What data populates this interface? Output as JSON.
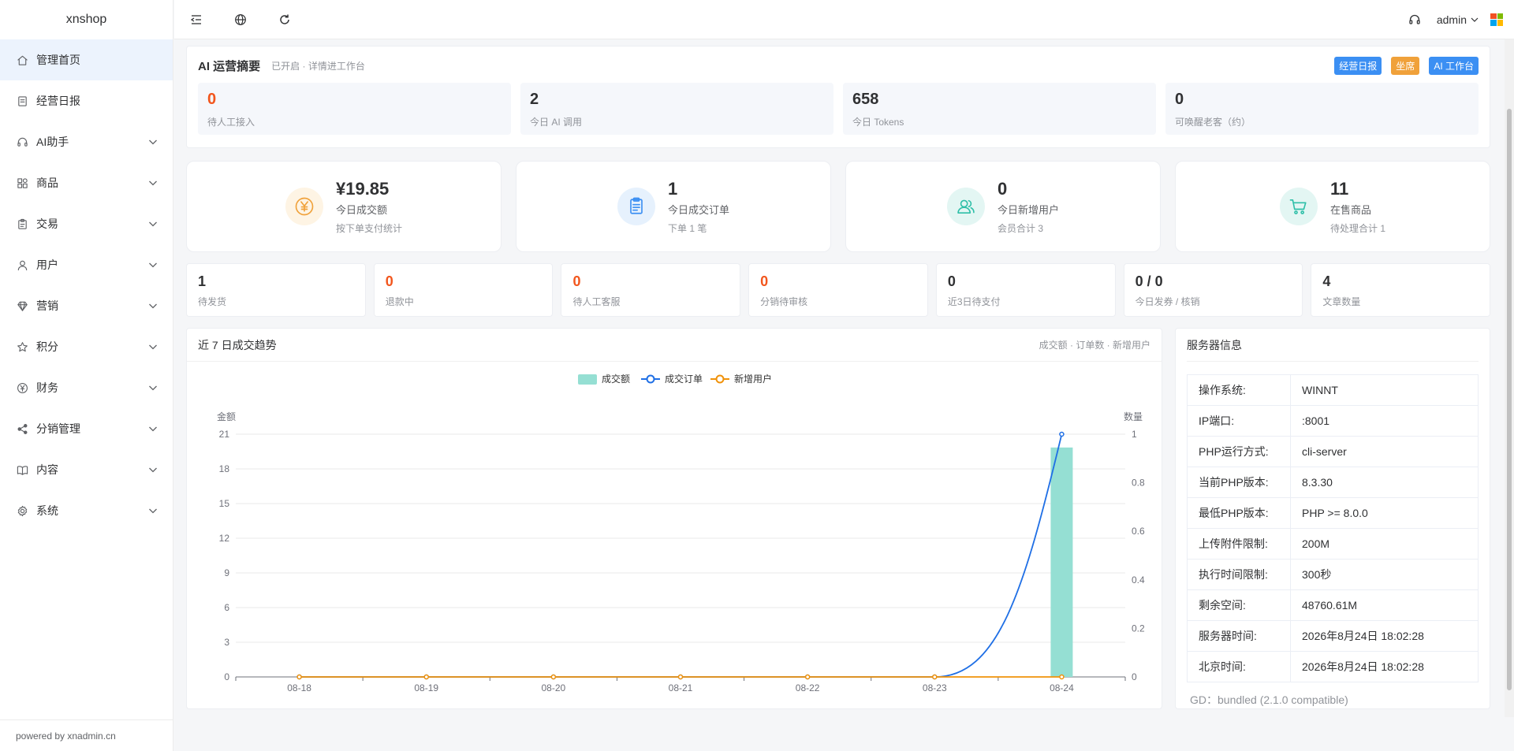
{
  "app": {
    "title": "xnshop",
    "footer": "powered by xnadmin.cn"
  },
  "sidebar": {
    "items": [
      {
        "label": "管理首页",
        "icon": "home-icon",
        "active": true,
        "expandable": false
      },
      {
        "label": "经营日报",
        "icon": "document-icon",
        "active": false,
        "expandable": false
      },
      {
        "label": "AI助手",
        "icon": "headset-icon",
        "active": false,
        "expandable": true
      },
      {
        "label": "商品",
        "icon": "goods-icon",
        "active": false,
        "expandable": true
      },
      {
        "label": "交易",
        "icon": "clipboard-icon",
        "active": false,
        "expandable": true
      },
      {
        "label": "用户",
        "icon": "user-icon",
        "active": false,
        "expandable": true
      },
      {
        "label": "营销",
        "icon": "diamond-icon",
        "active": false,
        "expandable": true
      },
      {
        "label": "积分",
        "icon": "star-icon",
        "active": false,
        "expandable": true
      },
      {
        "label": "财务",
        "icon": "yen-icon",
        "active": false,
        "expandable": true
      },
      {
        "label": "分销管理",
        "icon": "share-icon",
        "active": false,
        "expandable": true
      },
      {
        "label": "内容",
        "icon": "book-icon",
        "active": false,
        "expandable": true
      },
      {
        "label": "系统",
        "icon": "gear-icon",
        "active": false,
        "expandable": true
      }
    ]
  },
  "header": {
    "user": "admin"
  },
  "ai_summary": {
    "title": "AI 运营摘要",
    "subtitle": "已开启 · 详情进工作台",
    "actions": [
      {
        "label": "经营日报",
        "color": "#3b8ff3"
      },
      {
        "label": "坐席",
        "color": "#f0a13a"
      },
      {
        "label": "AI 工作台",
        "color": "#3b8ff3"
      }
    ],
    "stats": [
      {
        "value": "0",
        "label": "待人工接入",
        "red": true
      },
      {
        "value": "2",
        "label": "今日 AI 调用",
        "red": false
      },
      {
        "value": "658",
        "label": "今日 Tokens",
        "red": false
      },
      {
        "value": "0",
        "label": "可唤醒老客（约）",
        "red": false
      }
    ]
  },
  "big_stats": [
    {
      "value": "¥19.85",
      "label": "今日成交额",
      "sub": "按下单支付统计",
      "icon": "yen-circle-icon",
      "bg": "#fef4e4",
      "fg": "#f0a13a"
    },
    {
      "value": "1",
      "label": "今日成交订单",
      "sub": "下单 1 笔",
      "icon": "order-icon",
      "bg": "#e6f1fd",
      "fg": "#3b8ff3"
    },
    {
      "value": "0",
      "label": "今日新增用户",
      "sub": "会员合计 3",
      "icon": "users-icon",
      "bg": "#e3f6f3",
      "fg": "#2ebfa8"
    },
    {
      "value": "11",
      "label": "在售商品",
      "sub": "待处理合计 1",
      "icon": "cart-icon",
      "bg": "#e3f6f3",
      "fg": "#2ebfa8"
    }
  ],
  "small_stats": [
    {
      "value": "1",
      "label": "待发货",
      "red": false
    },
    {
      "value": "0",
      "label": "退款中",
      "red": true
    },
    {
      "value": "0",
      "label": "待人工客服",
      "red": true
    },
    {
      "value": "0",
      "label": "分销待审核",
      "red": true
    },
    {
      "value": "0",
      "label": "近3日待支付",
      "red": false
    },
    {
      "value": "0 / 0",
      "label": "今日发券 / 核销",
      "red": false
    },
    {
      "value": "4",
      "label": "文章数量",
      "red": false
    }
  ],
  "trend": {
    "title": "近 7 日成交趋势",
    "hint": "成交额 · 订单数 · 新增用户"
  },
  "chart_data": {
    "type": "bar",
    "categories": [
      "08-18",
      "08-19",
      "08-20",
      "08-21",
      "08-22",
      "08-23",
      "08-24"
    ],
    "series": [
      {
        "name": "成交额",
        "type": "bar",
        "axis": "left",
        "color": "#95dfd3",
        "values": [
          0,
          0,
          0,
          0,
          0,
          0,
          19.85
        ]
      },
      {
        "name": "成交订单",
        "type": "line",
        "axis": "right",
        "color": "#1f6fe5",
        "values": [
          0,
          0,
          0,
          0,
          0,
          0,
          1
        ]
      },
      {
        "name": "新增用户",
        "type": "line",
        "axis": "right",
        "color": "#f0920a",
        "values": [
          0,
          0,
          0,
          0,
          0,
          0,
          0
        ]
      }
    ],
    "ylabel": "金额",
    "y2label": "数量",
    "ylim": [
      0,
      21
    ],
    "yticks": [
      "0",
      "3",
      "6",
      "9",
      "12",
      "15",
      "18",
      "21"
    ],
    "y2lim": [
      0,
      1
    ],
    "y2ticks": [
      "0",
      "0.2",
      "0.4",
      "0.6",
      "0.8",
      "1"
    ],
    "legend": "top-center",
    "grid": true
  },
  "server": {
    "title": "服务器信息",
    "rows": [
      {
        "k": "操作系统:",
        "v": "WINNT"
      },
      {
        "k": "IP端口:",
        "v": ":8001"
      },
      {
        "k": "PHP运行方式:",
        "v": "cli-server"
      },
      {
        "k": "当前PHP版本:",
        "v": "8.3.30"
      },
      {
        "k": "最低PHP版本:",
        "v": "PHP >= 8.0.0"
      },
      {
        "k": "上传附件限制:",
        "v": "200M"
      },
      {
        "k": "执行时间限制:",
        "v": "300秒"
      },
      {
        "k": "剩余空间:",
        "v": "48760.61M"
      },
      {
        "k": "服务器时间:",
        "v": "2026年8月24日 18:02:28"
      },
      {
        "k": "北京时间:",
        "v": "2026年8月24日 18:02:28"
      }
    ],
    "gd": "GD：bundled (2.1.0 compatible)"
  }
}
